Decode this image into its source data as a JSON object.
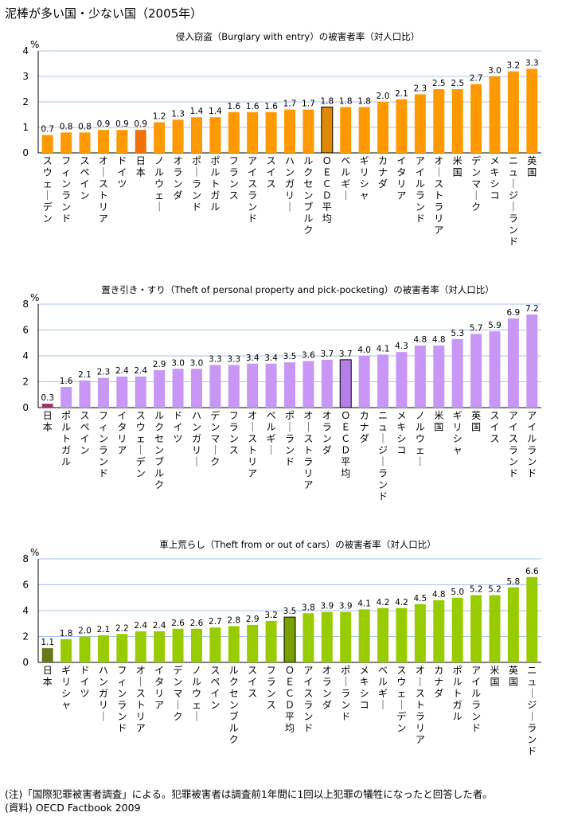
{
  "page_title": "泥棒が多い国・少ない国（2005年）",
  "chart_data": [
    {
      "type": "bar",
      "title": "侵入窃盗（Burglary with entry）の被害者率（対人口比）",
      "ylabel": "%",
      "ylim": [
        0,
        4
      ],
      "yticks": [
        0,
        1,
        2,
        3,
        4
      ],
      "categories": [
        "スウェーデン",
        "フィンランド",
        "スペイン",
        "オーストリア",
        "ドイツ",
        "日本",
        "ノルウェー",
        "オランダ",
        "ポーランド",
        "ポルトガル",
        "フランス",
        "アイスランド",
        "スイス",
        "ハンガリー",
        "ルクセンブルク",
        "ＯＥＣＤ平均",
        "ベルギー",
        "ギリシャ",
        "カナダ",
        "イタリア",
        "アイルランド",
        "オーストラリア",
        "米国",
        "デンマーク",
        "メキシコ",
        "ニュージーランド",
        "英国"
      ],
      "values": [
        0.7,
        0.8,
        0.8,
        0.9,
        0.9,
        0.9,
        1.2,
        1.3,
        1.4,
        1.4,
        1.6,
        1.6,
        1.6,
        1.7,
        1.7,
        1.8,
        1.8,
        1.8,
        2.0,
        2.1,
        2.3,
        2.5,
        2.5,
        2.7,
        3.0,
        3.2,
        3.3
      ],
      "labels": [
        "0.7",
        "0.8",
        "0.8",
        "0.9",
        "0.9",
        "0.9",
        "1.2",
        "1.3",
        "1.4",
        "1.4",
        "1.6",
        "1.6",
        "1.6",
        "1.7",
        "1.7",
        "1.8",
        "1.8",
        "1.8",
        "2.0",
        "2.1",
        "2.3",
        "2.5",
        "2.5",
        "2.7",
        "3.0",
        "3.2",
        "3.3"
      ],
      "highlight": {
        "日本": "#f0700a",
        "ＯＥＣＤ平均": "#e08800"
      },
      "colors": {
        "bar": "#ff9900",
        "japan": "#f0700a",
        "oecd": "#e08800",
        "grid": "#a8c0f0"
      }
    },
    {
      "type": "bar",
      "title": "置き引き・すり（Theft of personal property and pick-pocketing）の被害者率（対人口比）",
      "ylabel": "%",
      "ylim": [
        0,
        8
      ],
      "yticks": [
        0,
        2,
        4,
        6,
        8
      ],
      "categories": [
        "日本",
        "ポルトガル",
        "スペイン",
        "フィンランド",
        "イタリア",
        "スウェーデン",
        "ルクセンブルク",
        "ドイツ",
        "ハンガリー",
        "デンマーク",
        "フランス",
        "オーストリア",
        "ベルギー",
        "ポーランド",
        "オーストラリア",
        "オランダ",
        "ＯＥＣＤ平均",
        "カナダ",
        "ニュージーランド",
        "メキシコ",
        "ノルウェー",
        "米国",
        "ギリシャ",
        "英国",
        "スイス",
        "アイスランド",
        "アイルランド"
      ],
      "values": [
        0.3,
        1.6,
        2.1,
        2.3,
        2.4,
        2.4,
        2.9,
        3.0,
        3.0,
        3.3,
        3.3,
        3.4,
        3.4,
        3.5,
        3.6,
        3.7,
        3.7,
        4.0,
        4.1,
        4.3,
        4.8,
        4.8,
        5.3,
        5.7,
        5.9,
        6.9,
        7.2
      ],
      "labels": [
        "0.3",
        "1.6",
        "2.1",
        "2.3",
        "2.4",
        "2.4",
        "2.9",
        "3.0",
        "3.0",
        "3.3",
        "3.3",
        "3.4",
        "3.4",
        "3.5",
        "3.6",
        "3.7",
        "3.7",
        "4.0",
        "4.1",
        "4.3",
        "4.8",
        "4.8",
        "5.3",
        "5.7",
        "5.9",
        "6.9",
        "7.2"
      ],
      "colors": {
        "bar": "#c896f5",
        "japan": "#a0306a",
        "oecd": "#b480e8",
        "grid": "#a8c0f0"
      }
    },
    {
      "type": "bar",
      "title": "車上荒らし（Theft from or out of cars）の被害者率（対人口比）",
      "ylabel": "%",
      "ylim": [
        0,
        8
      ],
      "yticks": [
        0,
        2,
        4,
        6,
        8
      ],
      "categories": [
        "日本",
        "ギリシャ",
        "ドイツ",
        "ハンガリー",
        "フィンランド",
        "オーストリア",
        "イタリア",
        "デンマーク",
        "ノルウェー",
        "スペイン",
        "ルクセンブルク",
        "スイス",
        "フランス",
        "ＯＥＣＤ平均",
        "アイスランド",
        "オランダ",
        "ポーランド",
        "メキシコ",
        "ベルギー",
        "スウェーデン",
        "オーストラリア",
        "カナダ",
        "ポルトガル",
        "アイルランド",
        "米国",
        "英国",
        "ニュージーランド"
      ],
      "values": [
        1.1,
        1.8,
        2.0,
        2.1,
        2.2,
        2.4,
        2.4,
        2.6,
        2.6,
        2.7,
        2.8,
        2.9,
        3.2,
        3.5,
        3.8,
        3.9,
        3.9,
        4.1,
        4.2,
        4.2,
        4.5,
        4.8,
        5.0,
        5.2,
        5.2,
        5.8,
        6.6
      ],
      "labels": [
        "1.1",
        "1.8",
        "2.0",
        "2.1",
        "2.2",
        "2.4",
        "2.4",
        "2.6",
        "2.6",
        "2.7",
        "2.8",
        "2.9",
        "3.2",
        "3.5",
        "3.8",
        "3.9",
        "3.9",
        "4.1",
        "4.2",
        "4.2",
        "4.5",
        "4.8",
        "5.0",
        "5.2",
        "5.2",
        "5.8",
        "6.6"
      ],
      "colors": {
        "bar": "#99cc00",
        "japan": "#667a1a",
        "oecd": "#7aa000",
        "grid": "#a8c0f0"
      }
    }
  ],
  "notes": [
    "(注)「国際犯罪被害者調査」による。犯罪被害者は調査前1年間に1回以上犯罪の犠牲になったと回答した者。",
    "(資料) OECD Factbook 2009"
  ]
}
